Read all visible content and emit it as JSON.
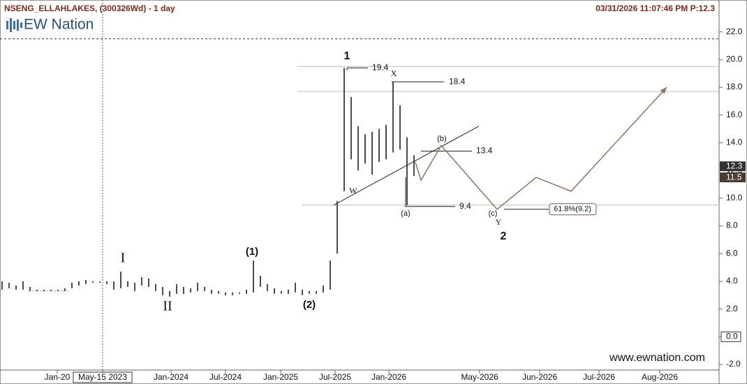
{
  "header": {
    "symbol": "NSENG_ELLAHLAKES, (300326Wd) - 1 day",
    "timestamp": "03/31/2026 11:07:46 PM  P:12.3",
    "logo": "EW Nation",
    "watermark": "www.ewnation.com"
  },
  "chart_data": {
    "type": "range-bar",
    "color": "#111111",
    "lows": [
      3.4,
      3.5,
      3.4,
      3.4,
      3.3,
      3.3,
      3.3,
      3.3,
      3.3,
      3.3,
      3.5,
      3.7,
      3.8,
      3.9,
      3.9,
      3.8,
      3.4,
      3.5,
      3.6,
      3.3,
      3.7,
      3.6,
      3.3,
      3.0,
      2.9,
      3.1,
      3.1,
      3.2,
      3.3,
      3.3,
      3.1,
      3.1,
      3.0,
      3.0,
      3.1,
      3.1,
      3.2,
      3.6,
      3.3,
      3.1,
      3.1,
      3.1,
      3.2,
      3.0,
      3.1,
      3.1,
      3.2,
      3.4,
      6.0,
      10.5,
      12.8,
      12.0,
      12.5,
      11.7,
      12.6,
      12.8,
      13.3,
      13.5,
      9.5,
      11.6
    ],
    "highs": [
      4.0,
      3.9,
      3.7,
      4.0,
      3.6,
      3.4,
      3.4,
      3.4,
      3.4,
      3.5,
      3.9,
      4.0,
      4.1,
      4.0,
      4.0,
      4.0,
      4.0,
      4.7,
      4.0,
      3.9,
      4.3,
      4.2,
      3.8,
      3.6,
      3.3,
      3.8,
      3.6,
      3.5,
      3.9,
      3.6,
      3.4,
      3.3,
      3.2,
      3.2,
      3.2,
      3.4,
      5.5,
      4.4,
      3.8,
      3.5,
      3.3,
      3.4,
      3.9,
      3.4,
      3.3,
      3.3,
      3.7,
      5.5,
      9.8,
      19.4,
      17.3,
      15.2,
      14.6,
      14.8,
      15.0,
      15.3,
      18.4,
      16.7,
      14.4,
      13.1
    ],
    "x_labels": [
      "Jan-20",
      "May-15 2023",
      "Jan-2024",
      "Jul-2024",
      "Jan-2025",
      "Jul-2025",
      "Jan-2026",
      "May-2026",
      "Jun-2026",
      "Jul-2026",
      "Aug-2026"
    ],
    "ylim": [
      -2.4,
      24.3
    ],
    "yticks": [
      {
        "value": -2,
        "label": "-2.0"
      },
      {
        "value": 0,
        "label": "0.0"
      },
      {
        "value": 2,
        "label": "2.0"
      },
      {
        "value": 4,
        "label": "4.0"
      },
      {
        "value": 6,
        "label": "6.0"
      },
      {
        "value": 8,
        "label": "8.0"
      },
      {
        "value": 10,
        "label": "10.0"
      },
      {
        "value": 12,
        "label": "12.0"
      },
      {
        "value": 14,
        "label": "14.0"
      },
      {
        "value": 16,
        "label": "16.0"
      },
      {
        "value": 18,
        "label": "18.0"
      },
      {
        "value": 20,
        "label": "20.0"
      },
      {
        "value": 22,
        "label": "22.0"
      }
    ],
    "hlines": [
      19.5,
      17.7,
      9.5
    ],
    "dashed_level": 21.5,
    "levels": [
      19.4,
      18.4,
      13.4,
      9.4
    ],
    "fib_level": {
      "value": 9.2,
      "label": "61.8%(9.2)"
    },
    "price_tags": [
      12.3,
      11.5
    ],
    "zero_tag": {
      "value": 0,
      "label": "0.0"
    },
    "trendline": [
      9.5,
      15.2
    ],
    "projection": {
      "color": "#8a7560",
      "values": [
        12.6,
        11.3,
        13.8,
        9.2,
        11.5,
        10.5,
        18.0
      ]
    },
    "wave_labels": [
      "1",
      "2",
      "(1)",
      "(2)",
      "I",
      "II",
      "W",
      "X",
      "Y",
      "(a)",
      "(b)",
      "(c)"
    ]
  }
}
